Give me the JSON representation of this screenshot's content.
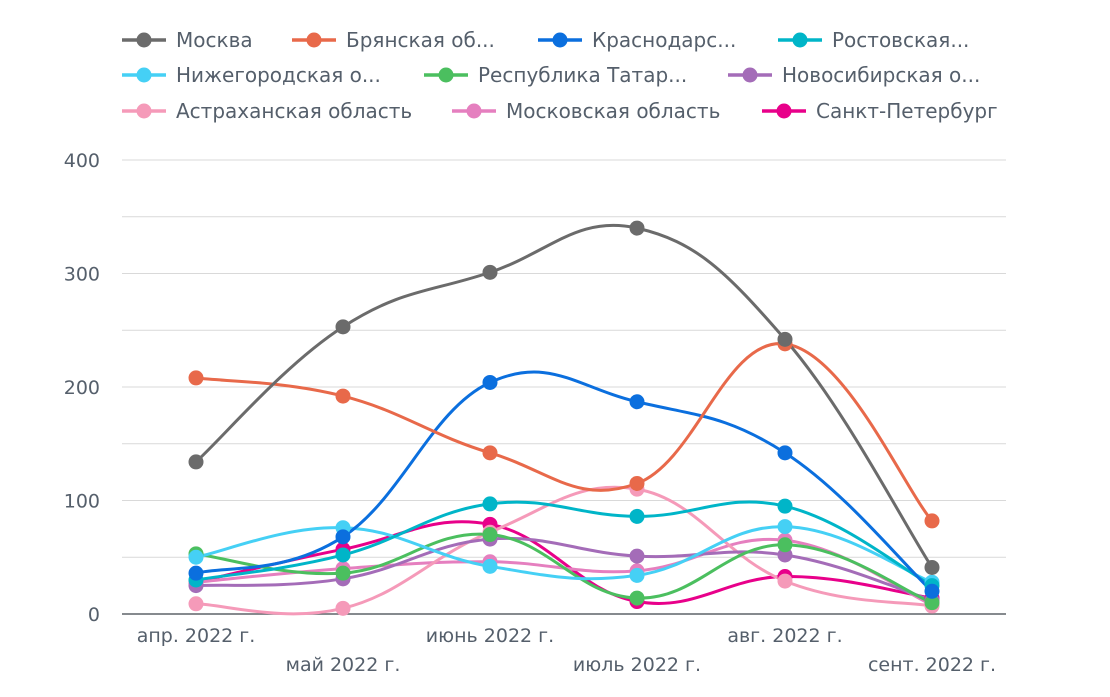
{
  "chart_data": {
    "type": "line",
    "categories": [
      "апр. 2022 г.",
      "май 2022 г.",
      "июнь 2022 г.",
      "июль 2022 г.",
      "авг. 2022 г.",
      "сент. 2022 г."
    ],
    "ylim": [
      0,
      400
    ],
    "yticks": [
      "0",
      "100",
      "200",
      "300",
      "400"
    ],
    "grid": true,
    "legend_position": "top",
    "series": [
      {
        "name": "Москва",
        "color": "#6b6b6b",
        "values": [
          134,
          253,
          301,
          340,
          242,
          41
        ]
      },
      {
        "name": "Брянская об...",
        "color": "#e8694a",
        "values": [
          208,
          192,
          142,
          115,
          238,
          82
        ]
      },
      {
        "name": "Краснодарс...",
        "color": "#0b6fde",
        "values": [
          36,
          68,
          204,
          187,
          142,
          20
        ]
      },
      {
        "name": "Ростовская...",
        "color": "#00b5c8",
        "values": [
          30,
          52,
          97,
          86,
          95,
          25
        ]
      },
      {
        "name": "Нижегородская о...",
        "color": "#45d0f5",
        "values": [
          50,
          76,
          42,
          34,
          77,
          28
        ]
      },
      {
        "name": "Республика Татар...",
        "color": "#4bbf5f",
        "values": [
          53,
          36,
          70,
          14,
          61,
          10
        ]
      },
      {
        "name": "Новосибирская о...",
        "color": "#a46cb8",
        "values": [
          25,
          31,
          66,
          51,
          52,
          12
        ]
      },
      {
        "name": "Астраханская область",
        "color": "#f59ab9",
        "values": [
          9,
          5,
          72,
          110,
          29,
          7
        ]
      },
      {
        "name": "Московская область",
        "color": "#e57fbf",
        "values": [
          28,
          40,
          46,
          38,
          65,
          8
        ]
      },
      {
        "name": "Санкт-Петербург",
        "color": "#e8008a",
        "values": [
          28,
          57,
          79,
          11,
          33,
          14
        ]
      }
    ]
  }
}
